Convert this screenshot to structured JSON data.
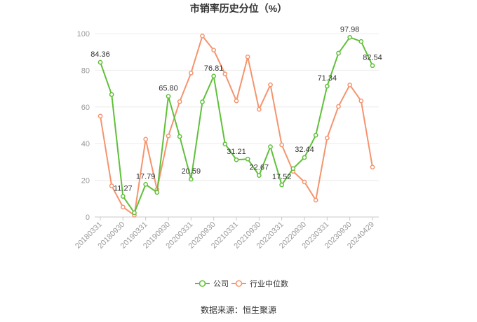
{
  "source": "数据来源：恒生聚源",
  "chart_data": {
    "type": "line",
    "title": "市销率历史分位（%）",
    "categories": [
      "20180331",
      "",
      "20180930",
      "",
      "20190331",
      "",
      "20190930",
      "",
      "20200331",
      "",
      "20200930",
      "",
      "20210331",
      "",
      "20210930",
      "",
      "20220331",
      "",
      "20220930",
      "",
      "20230331",
      "",
      "20230930",
      "",
      "20240429"
    ],
    "ylim": [
      0,
      100
    ],
    "yticks": [
      0,
      20,
      40,
      60,
      80,
      100
    ],
    "grid": true,
    "legend_position": "bottom",
    "series": [
      {
        "name": "公司",
        "color": "#60c03a",
        "data_labels": true,
        "values": [
          84.36,
          66.8,
          11.27,
          2.3,
          17.79,
          13.4,
          65.8,
          43.9,
          20.59,
          62.8,
          76.81,
          39.8,
          31.21,
          31.6,
          22.67,
          38.3,
          17.52,
          26.4,
          32.44,
          44.6,
          71.34,
          89.3,
          97.98,
          95.7,
          82.54
        ]
      },
      {
        "name": "行业中位数",
        "color": "#f5946e",
        "data_labels": false,
        "values": [
          55.0,
          17.0,
          5.4,
          1.0,
          42.4,
          15.0,
          44.2,
          62.9,
          78.5,
          98.7,
          91.0,
          78.0,
          63.3,
          87.3,
          58.7,
          72.1,
          39.3,
          24.9,
          19.1,
          9.2,
          43.1,
          60.3,
          72.0,
          63.3,
          27.2
        ]
      }
    ]
  }
}
